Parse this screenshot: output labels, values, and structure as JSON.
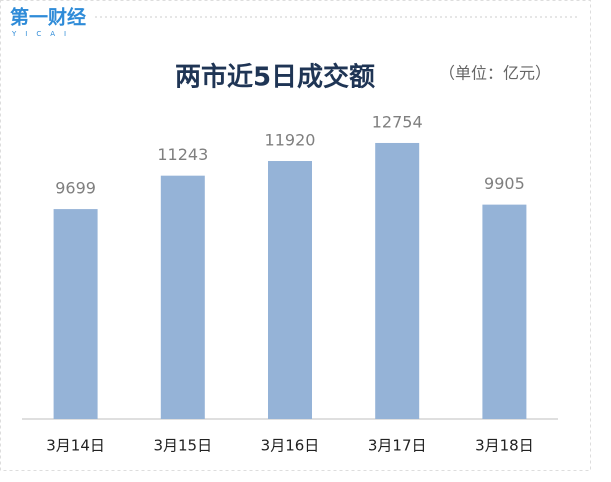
{
  "logo": {
    "name": "第一财经",
    "sub": "YICAI"
  },
  "chart_data": {
    "type": "bar",
    "title": "两市近5日成交额",
    "subtitle": "（单位：亿元）",
    "categories": [
      "3月14日",
      "3月15日",
      "3月16日",
      "3月17日",
      "3月18日"
    ],
    "values": [
      9699,
      11243,
      11920,
      12754,
      9905
    ],
    "color": "#95b3d7",
    "ylim": [
      0,
      14000
    ]
  }
}
